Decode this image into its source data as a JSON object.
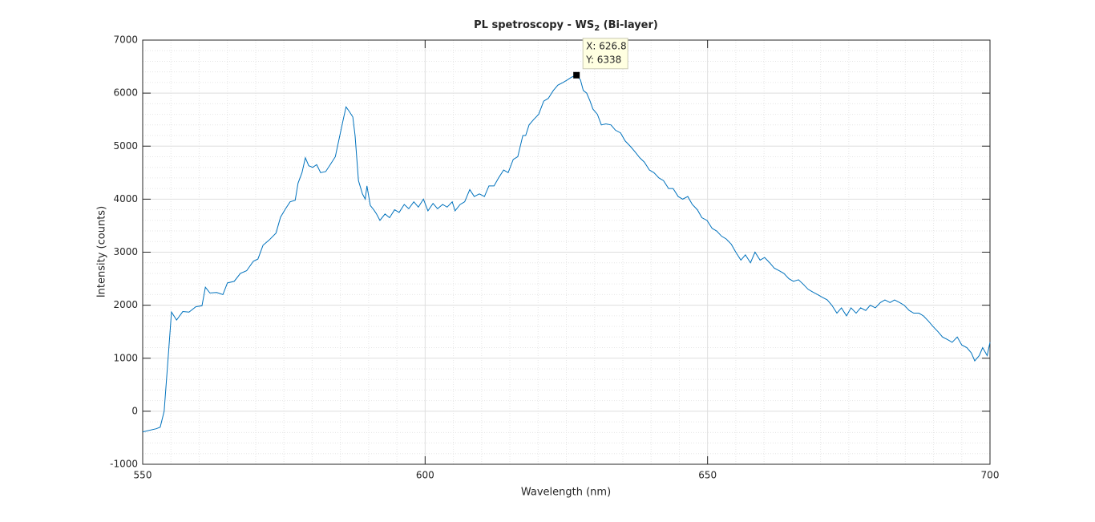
{
  "chart_data": {
    "type": "line",
    "title": {
      "main": "PL spetroscopy - WS",
      "subscript": "2",
      "rest": " (Bi-layer)"
    },
    "xlabel": "Wavelength (nm)",
    "ylabel": "Intensity (counts)",
    "color": "#0072bd",
    "x": [
      550,
      552.4,
      553.1,
      553.8,
      554.5,
      555.1,
      556,
      557.1,
      558.2,
      559.4,
      560.5,
      561.1,
      561.9,
      563.1,
      564.2,
      565,
      566.2,
      567.3,
      568.4,
      569.6,
      570.4,
      571.3,
      572.4,
      573.6,
      574.4,
      575.3,
      576.1,
      577,
      577.5,
      578.2,
      578.8,
      579.4,
      580.1,
      580.8,
      581.5,
      582.4,
      583.2,
      584.1,
      584.9,
      585.5,
      586,
      586.6,
      587.2,
      587.6,
      588.2,
      588.9,
      589.4,
      589.7,
      590.3,
      590.9,
      591.4,
      592,
      592.9,
      593.7,
      594.6,
      595.4,
      596.3,
      597.1,
      598,
      598.8,
      599.7,
      600.5,
      601.4,
      602.2,
      603.1,
      603.9,
      604.8,
      605.3,
      606.2,
      607,
      607.9,
      608.7,
      609.6,
      610.5,
      611.3,
      612.2,
      613,
      613.9,
      614.7,
      615.6,
      616.4,
      617.3,
      617.8,
      618.4,
      619.2,
      620.1,
      621,
      621.8,
      622.7,
      623.5,
      624.4,
      625.2,
      625.9,
      626.8,
      627.5,
      628,
      628.6,
      629.2,
      629.7,
      630.5,
      631.2,
      632,
      632.9,
      633.7,
      634.6,
      635.4,
      636.3,
      637.1,
      638,
      638.8,
      639.7,
      640.5,
      641.4,
      642.2,
      643.1,
      643.9,
      644.8,
      645.6,
      646.5,
      647.3,
      648.2,
      649,
      649.9,
      650.8,
      651.6,
      652.5,
      653.3,
      654.2,
      655,
      655.9,
      656.7,
      657.6,
      658.4,
      659.3,
      660.1,
      661,
      661.8,
      662.7,
      663.5,
      664.4,
      665.2,
      666.1,
      666.9,
      667.8,
      668.6,
      669.5,
      670.3,
      671.2,
      672,
      672.9,
      673.7,
      674.6,
      675.4,
      676.3,
      677.1,
      678,
      678.8,
      679.7,
      680.6,
      681.4,
      682.3,
      683.1,
      684,
      684.8,
      685.7,
      686.5,
      687.4,
      688.2,
      689.1,
      689.9,
      690.8,
      691.6,
      692.5,
      693.3,
      694.2,
      695,
      695.9,
      696.7,
      697.3,
      698.1,
      698.7,
      699.5,
      700
    ],
    "values": [
      -390,
      -330,
      -300,
      0,
      1000,
      1870,
      1720,
      1880,
      1870,
      1970,
      1990,
      2340,
      2230,
      2240,
      2200,
      2420,
      2450,
      2600,
      2650,
      2830,
      2870,
      3130,
      3230,
      3360,
      3660,
      3820,
      3950,
      3980,
      4300,
      4500,
      4780,
      4630,
      4600,
      4650,
      4500,
      4520,
      4650,
      4800,
      5200,
      5500,
      5740,
      5650,
      5550,
      5200,
      4350,
      4100,
      4000,
      4250,
      3880,
      3800,
      3720,
      3600,
      3720,
      3650,
      3800,
      3750,
      3900,
      3820,
      3950,
      3850,
      4000,
      3780,
      3920,
      3820,
      3900,
      3850,
      3950,
      3780,
      3900,
      3950,
      4180,
      4050,
      4100,
      4050,
      4250,
      4250,
      4400,
      4550,
      4500,
      4750,
      4800,
      5200,
      5200,
      5400,
      5500,
      5600,
      5850,
      5900,
      6050,
      6150,
      6200,
      6250,
      6300,
      6338,
      6250,
      6050,
      6000,
      5850,
      5700,
      5600,
      5400,
      5420,
      5400,
      5300,
      5250,
      5100,
      5000,
      4900,
      4780,
      4700,
      4550,
      4500,
      4400,
      4350,
      4200,
      4200,
      4050,
      4000,
      4050,
      3900,
      3800,
      3650,
      3600,
      3450,
      3400,
      3300,
      3250,
      3150,
      3000,
      2850,
      2950,
      2800,
      3000,
      2850,
      2900,
      2800,
      2700,
      2650,
      2600,
      2500,
      2450,
      2480,
      2400,
      2300,
      2250,
      2200,
      2150,
      2100,
      2000,
      1850,
      1950,
      1800,
      1950,
      1850,
      1950,
      1900,
      2000,
      1950,
      2050,
      2100,
      2050,
      2100,
      2050,
      2000,
      1900,
      1850,
      1850,
      1800,
      1700,
      1600,
      1500,
      1400,
      1350,
      1300,
      1400,
      1250,
      1200,
      1100,
      950,
      1050,
      1200,
      1050,
      1300
    ],
    "xlim": [
      550,
      700
    ],
    "ylim": [
      -1000,
      7000
    ],
    "xticks": [
      550,
      600,
      650,
      700
    ],
    "yticks": [
      -1000,
      0,
      1000,
      2000,
      3000,
      4000,
      5000,
      6000,
      7000
    ],
    "xminorticks": [
      555,
      560,
      565,
      570,
      575,
      580,
      585,
      590,
      595,
      605,
      610,
      615,
      620,
      625,
      630,
      635,
      640,
      645,
      655,
      660,
      665,
      670,
      675,
      680,
      685,
      690,
      695
    ],
    "yminorticks": [
      -800,
      -600,
      -400,
      -200,
      200,
      400,
      600,
      800,
      1200,
      1400,
      1600,
      1800,
      2200,
      2400,
      2600,
      2800,
      3200,
      3400,
      3600,
      3800,
      4200,
      4400,
      4600,
      4800,
      5200,
      5400,
      5600,
      5800,
      6200,
      6400,
      6600,
      6800
    ],
    "grid": true,
    "minor_grid": true,
    "datatip": {
      "x": 626.8,
      "y": 6338,
      "labels": [
        "X: 626.8",
        "Y: 6338"
      ]
    }
  }
}
